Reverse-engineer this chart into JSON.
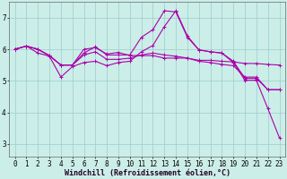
{
  "xlabel": "Windchill (Refroidissement éolien,°C)",
  "ylabel": "",
  "background_color": "#cceee8",
  "line_color": "#aa00aa",
  "grid_color": "#99cccc",
  "xlim": [
    -0.5,
    23.5
  ],
  "ylim": [
    2.6,
    7.5
  ],
  "xticks": [
    0,
    1,
    2,
    3,
    4,
    5,
    6,
    7,
    8,
    9,
    10,
    11,
    12,
    13,
    14,
    15,
    16,
    17,
    18,
    19,
    20,
    21,
    22,
    23
  ],
  "yticks": [
    3,
    4,
    5,
    6,
    7
  ],
  "lines": [
    [
      6.0,
      6.1,
      6.0,
      5.8,
      5.5,
      5.5,
      6.0,
      6.05,
      5.85,
      5.9,
      5.8,
      5.8,
      5.8,
      5.72,
      5.72,
      5.72,
      5.65,
      5.65,
      5.62,
      5.6,
      5.55,
      5.55,
      5.52,
      5.5
    ],
    [
      6.0,
      6.1,
      6.0,
      5.8,
      5.5,
      5.5,
      5.82,
      5.92,
      5.68,
      5.68,
      5.72,
      5.82,
      5.88,
      5.82,
      5.78,
      5.72,
      5.62,
      5.58,
      5.52,
      5.48,
      5.12,
      5.12,
      4.72,
      4.72
    ],
    [
      6.0,
      6.1,
      6.0,
      5.8,
      5.5,
      5.5,
      5.88,
      6.08,
      5.82,
      5.82,
      5.82,
      6.38,
      6.62,
      7.22,
      7.18,
      6.38,
      5.98,
      5.92,
      5.88,
      5.62,
      5.08,
      5.08,
      4.72,
      4.72
    ],
    [
      6.0,
      6.1,
      5.88,
      5.78,
      5.12,
      5.45,
      5.58,
      5.62,
      5.48,
      5.58,
      5.62,
      5.92,
      6.12,
      6.72,
      7.22,
      6.42,
      5.98,
      5.92,
      5.88,
      5.58,
      5.02,
      5.02,
      4.12,
      3.2
    ]
  ],
  "marker": "+",
  "markersize": 3,
  "linewidth": 0.8,
  "xlabel_fontsize": 6,
  "tick_fontsize": 5.5
}
